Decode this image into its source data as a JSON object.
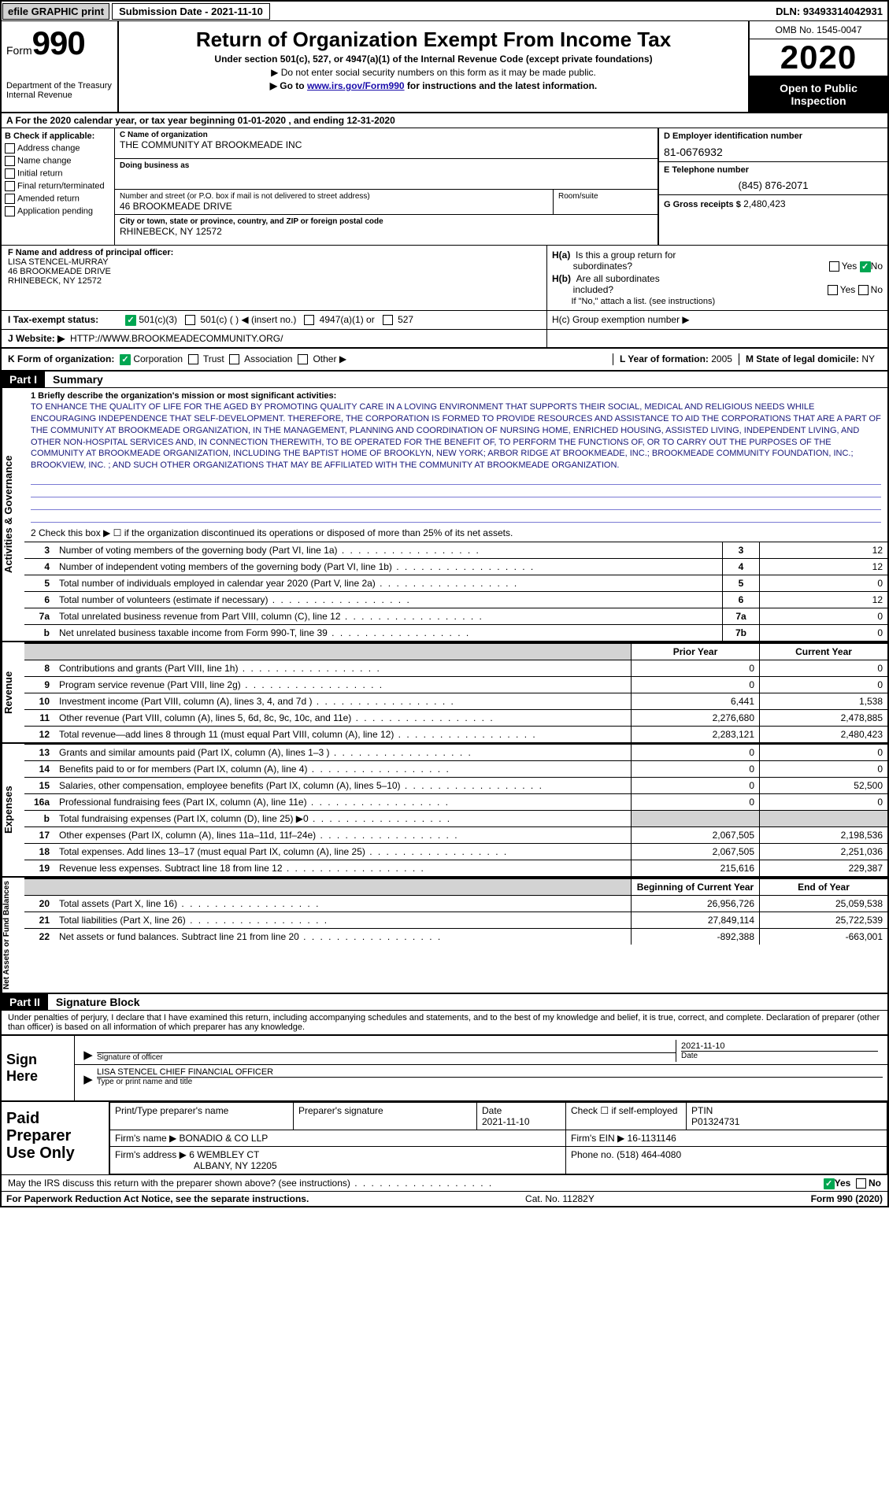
{
  "top": {
    "efile": "efile GRAPHIC print",
    "sub_label": "Submission Date - 2021-11-10",
    "dln": "DLN: 93493314042931"
  },
  "header": {
    "form_label": "Form",
    "form_num": "990",
    "dept": "Department of the Treasury\nInternal Revenue",
    "title": "Return of Organization Exempt From Income Tax",
    "subtitle": "Under section 501(c), 527, or 4947(a)(1) of the Internal Revenue Code (except private foundations)",
    "nossn": "▶ Do not enter social security numbers on this form as it may be made public.",
    "goto_pre": "▶ Go to ",
    "goto_link": "www.irs.gov/Form990",
    "goto_post": " for instructions and the latest information.",
    "omb": "OMB No. 1545-0047",
    "year": "2020",
    "open": "Open to Public Inspection"
  },
  "ty_line": "A For the 2020 calendar year, or tax year beginning 01-01-2020   , and ending 12-31-2020",
  "boxB": {
    "label": "B Check if applicable:",
    "items": [
      "Address change",
      "Name change",
      "Initial return",
      "Final return/terminated",
      "Amended return",
      "Application pending"
    ]
  },
  "boxC": {
    "name_lbl": "C Name of organization",
    "name": "THE COMMUNITY AT BROOKMEADE INC",
    "dba_lbl": "Doing business as",
    "dba": "",
    "street_lbl": "Number and street (or P.O. box if mail is not delivered to street address)",
    "street": "46 BROOKMEADE DRIVE",
    "room_lbl": "Room/suite",
    "room": "",
    "city_lbl": "City or town, state or province, country, and ZIP or foreign postal code",
    "city": "RHINEBECK, NY  12572"
  },
  "boxD": {
    "lbl": "D Employer identification number",
    "val": "81-0676932"
  },
  "boxE": {
    "lbl": "E Telephone number",
    "val": "(845) 876-2071"
  },
  "boxG": {
    "lbl": "G Gross receipts $",
    "val": "2,480,423"
  },
  "boxF": {
    "lbl": "F  Name and address of principal officer:",
    "name": "LISA STENCEL-MURRAY",
    "addr1": "46 BROOKMEADE DRIVE",
    "addr2": "RHINEBECK, NY  12572"
  },
  "boxH": {
    "a": "H(a)  Is this a group return for subordinates?",
    "b": "H(b)  Are all subordinates included?",
    "b2": "If \"No,\" attach a list. (see instructions)",
    "c": "H(c)  Group exemption number ▶",
    "yes": "Yes",
    "no": "No"
  },
  "boxI": {
    "lbl": "I  Tax-exempt status:",
    "opts": [
      "501(c)(3)",
      "501(c) (   ) ◀ (insert no.)",
      "4947(a)(1) or",
      "527"
    ]
  },
  "boxJ": {
    "lbl": "J  Website: ▶",
    "val": "HTTP://WWW.BROOKMEADECOMMUNITY.ORG/"
  },
  "boxK": {
    "lbl": "K Form of organization:",
    "opts": [
      "Corporation",
      "Trust",
      "Association",
      "Other ▶"
    ]
  },
  "boxL": {
    "lbl": "L Year of formation:",
    "val": "2005"
  },
  "boxM": {
    "lbl": "M State of legal domicile:",
    "val": "NY"
  },
  "partI": {
    "title": "Part I",
    "sub": "Summary",
    "line1_lbl": "1  Briefly describe the organization's mission or most significant activities:",
    "mission": "TO ENHANCE THE QUALITY OF LIFE FOR THE AGED BY PROMOTING QUALITY CARE IN A LOVING ENVIRONMENT THAT SUPPORTS THEIR SOCIAL, MEDICAL AND RELIGIOUS NEEDS WHILE ENCOURAGING INDEPENDENCE THAT SELF-DEVELOPMENT. THEREFORE, THE CORPORATION IS FORMED TO PROVIDE RESOURCES AND ASSISTANCE TO AID THE CORPORATIONS THAT ARE A PART OF THE COMMUNITY AT BROOKMEADE ORGANIZATION, IN THE MANAGEMENT, PLANNING AND COORDINATION OF NURSING HOME, ENRICHED HOUSING, ASSISTED LIVING, INDEPENDENT LIVING, AND OTHER NON-HOSPITAL SERVICES AND, IN CONNECTION THEREWITH, TO BE OPERATED FOR THE BENEFIT OF, TO PERFORM THE FUNCTIONS OF, OR TO CARRY OUT THE PURPOSES OF THE COMMUNITY AT BROOKMEADE ORGANIZATION, INCLUDING THE BAPTIST HOME OF BROOKLYN, NEW YORK; ARBOR RIDGE AT BROOKMEADE, INC.; BROOKMEADE COMMUNITY FOUNDATION, INC.; BROOKVIEW, INC. ; AND SUCH OTHER ORGANIZATIONS THAT MAY BE AFFILIATED WITH THE COMMUNITY AT BROOKMEADE ORGANIZATION.",
    "line2": "2   Check this box ▶ ☐ if the organization discontinued its operations or disposed of more than 25% of its net assets.",
    "rows_top": [
      {
        "n": "3",
        "t": "Number of voting members of the governing body (Part VI, line 1a)",
        "k": "3",
        "v": "12"
      },
      {
        "n": "4",
        "t": "Number of independent voting members of the governing body (Part VI, line 1b)",
        "k": "4",
        "v": "12"
      },
      {
        "n": "5",
        "t": "Total number of individuals employed in calendar year 2020 (Part V, line 2a)",
        "k": "5",
        "v": "0"
      },
      {
        "n": "6",
        "t": "Total number of volunteers (estimate if necessary)",
        "k": "6",
        "v": "12"
      },
      {
        "n": "7a",
        "t": "Total unrelated business revenue from Part VIII, column (C), line 12",
        "k": "7a",
        "v": "0"
      },
      {
        "n": "b",
        "t": "Net unrelated business taxable income from Form 990-T, line 39",
        "k": "7b",
        "v": "0"
      }
    ],
    "hdr_prior": "Prior Year",
    "hdr_curr": "Current Year",
    "revenue": [
      {
        "n": "8",
        "t": "Contributions and grants (Part VIII, line 1h)",
        "p": "0",
        "c": "0"
      },
      {
        "n": "9",
        "t": "Program service revenue (Part VIII, line 2g)",
        "p": "0",
        "c": "0"
      },
      {
        "n": "10",
        "t": "Investment income (Part VIII, column (A), lines 3, 4, and 7d )",
        "p": "6,441",
        "c": "1,538"
      },
      {
        "n": "11",
        "t": "Other revenue (Part VIII, column (A), lines 5, 6d, 8c, 9c, 10c, and 11e)",
        "p": "2,276,680",
        "c": "2,478,885"
      },
      {
        "n": "12",
        "t": "Total revenue—add lines 8 through 11 (must equal Part VIII, column (A), line 12)",
        "p": "2,283,121",
        "c": "2,480,423"
      }
    ],
    "expenses": [
      {
        "n": "13",
        "t": "Grants and similar amounts paid (Part IX, column (A), lines 1–3 )",
        "p": "0",
        "c": "0"
      },
      {
        "n": "14",
        "t": "Benefits paid to or for members (Part IX, column (A), line 4)",
        "p": "0",
        "c": "0"
      },
      {
        "n": "15",
        "t": "Salaries, other compensation, employee benefits (Part IX, column (A), lines 5–10)",
        "p": "0",
        "c": "52,500"
      },
      {
        "n": "16a",
        "t": "Professional fundraising fees (Part IX, column (A), line 11e)",
        "p": "0",
        "c": "0"
      },
      {
        "n": "b",
        "t": "Total fundraising expenses (Part IX, column (D), line 25) ▶0",
        "p": "grey",
        "c": "grey"
      },
      {
        "n": "17",
        "t": "Other expenses (Part IX, column (A), lines 11a–11d, 11f–24e)",
        "p": "2,067,505",
        "c": "2,198,536"
      },
      {
        "n": "18",
        "t": "Total expenses. Add lines 13–17 (must equal Part IX, column (A), line 25)",
        "p": "2,067,505",
        "c": "2,251,036"
      },
      {
        "n": "19",
        "t": "Revenue less expenses. Subtract line 18 from line 12",
        "p": "215,616",
        "c": "229,387"
      }
    ],
    "hdr_boy": "Beginning of Current Year",
    "hdr_eoy": "End of Year",
    "netassets": [
      {
        "n": "20",
        "t": "Total assets (Part X, line 16)",
        "p": "26,956,726",
        "c": "25,059,538"
      },
      {
        "n": "21",
        "t": "Total liabilities (Part X, line 26)",
        "p": "27,849,114",
        "c": "25,722,539"
      },
      {
        "n": "22",
        "t": "Net assets or fund balances. Subtract line 21 from line 20",
        "p": "-892,388",
        "c": "-663,001"
      }
    ],
    "side_labels": [
      "Activities & Governance",
      "Revenue",
      "Expenses",
      "Net Assets or Fund Balances"
    ]
  },
  "partII": {
    "title": "Part II",
    "sub": "Signature Block",
    "decl": "Under penalties of perjury, I declare that I have examined this return, including accompanying schedules and statements, and to the best of my knowledge and belief, it is true, correct, and complete. Declaration of preparer (other than officer) is based on all information of which preparer has any knowledge.",
    "sign_here": "Sign Here",
    "sig_officer": "Signature of officer",
    "sig_date": "2021-11-10",
    "date_lbl": "Date",
    "name_title": "LISA STENCEL  CHIEF FINANCIAL OFFICER",
    "name_lbl": "Type or print name and title"
  },
  "paid": {
    "title": "Paid Preparer Use Only",
    "prep_name_lbl": "Print/Type preparer's name",
    "prep_sig_lbl": "Preparer's signature",
    "date_lbl": "Date",
    "date": "2021-11-10",
    "check_lbl": "Check ☐ if self-employed",
    "ptin_lbl": "PTIN",
    "ptin": "P01324731",
    "firm_name_lbl": "Firm's name   ▶",
    "firm_name": "BONADIO & CO LLP",
    "firm_ein_lbl": "Firm's EIN ▶",
    "firm_ein": "16-1131146",
    "firm_addr_lbl": "Firm's address ▶",
    "firm_addr": "6 WEMBLEY CT",
    "firm_city": "ALBANY, NY  12205",
    "phone_lbl": "Phone no.",
    "phone": "(518) 464-4080"
  },
  "discuss": "May the IRS discuss this return with the preparer shown above? (see instructions)",
  "footer": {
    "pra": "For Paperwork Reduction Act Notice, see the separate instructions.",
    "cat": "Cat. No. 11282Y",
    "form": "Form 990 (2020)"
  }
}
